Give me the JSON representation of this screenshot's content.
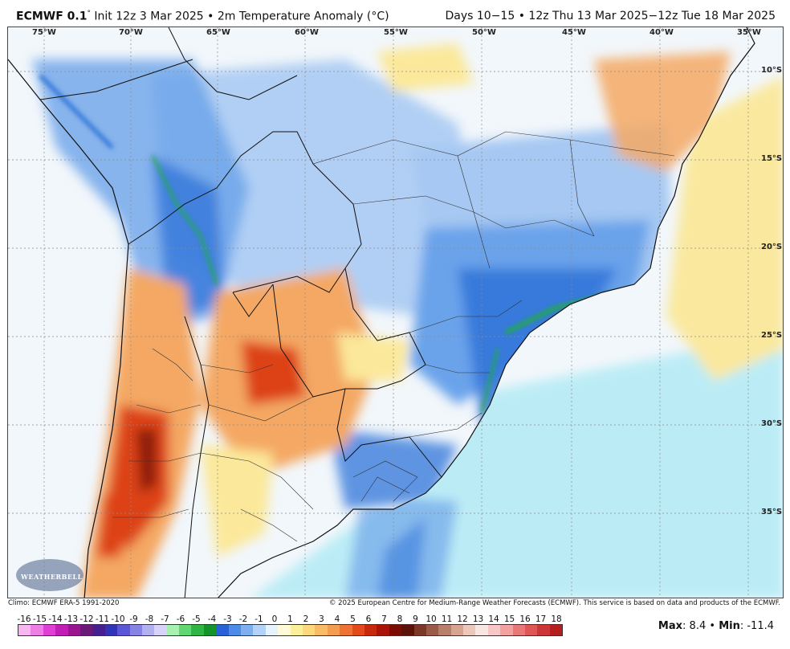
{
  "header": {
    "model": "ECMWF 0.1",
    "degree_mark": "°",
    "init": "Init 12z 3 Mar 2025",
    "sep1": "•",
    "product": "2m Temperature Anomaly (°C)",
    "period": "Days 10−15",
    "sep2": "•",
    "valid": "12z Thu 13 Mar 2025−12z Tue 18 Mar 2025"
  },
  "map": {
    "lon_labels": [
      "75°W",
      "70°W",
      "65°W",
      "60°W",
      "55°W",
      "50°W",
      "45°W",
      "40°W",
      "35°W"
    ],
    "lat_labels": [
      "10°S",
      "15°S",
      "20°S",
      "25°S",
      "30°S",
      "35°S"
    ],
    "colors": {
      "ocean_cool": "#b9ecf6",
      "ocean_neutral": "#f2f7fb",
      "cold_blue": "#2f73d9",
      "cold_mid": "#6aa3ea",
      "cold_light": "#a6c8f2",
      "very_cold_green": "#1fae3a",
      "warm_yellow": "#fbe89a",
      "warm_orange": "#f4a863",
      "hot_red": "#dd4316",
      "very_hot": "#8b1a0a"
    }
  },
  "footer": {
    "climo": "Climo: ECMWF ERA-5 1991-2020",
    "copyright": "© 2025 European Centre for Medium-Range Weather Forecasts (ECMWF). This service is based on data and products of the ECMWF."
  },
  "colorbar": {
    "ticks": [
      "-16",
      "-15",
      "-14",
      "-13",
      "-12",
      "-11",
      "-10",
      "-9",
      "-8",
      "-7",
      "-6",
      "-5",
      "-4",
      "-3",
      "-2",
      "-1",
      "0",
      "1",
      "2",
      "3",
      "4",
      "5",
      "6",
      "7",
      "8",
      "9",
      "10",
      "11",
      "12",
      "13",
      "14",
      "15",
      "16",
      "17",
      "18"
    ],
    "colors": [
      "#f6b6f0",
      "#ee7de6",
      "#df3fd4",
      "#c21db7",
      "#9a1690",
      "#6b1a78",
      "#46208f",
      "#3234b6",
      "#5a56d6",
      "#8782e6",
      "#b3b0f0",
      "#d6d2f8",
      "#a8f0b0",
      "#62d672",
      "#2fb544",
      "#12942a",
      "#2a62d6",
      "#4c8ce6",
      "#7eb0f0",
      "#b2d2f8",
      "#e6f2fc",
      "#fffbd9",
      "#fcef9c",
      "#fbd97c",
      "#f8bd64",
      "#f49c50",
      "#ee7236",
      "#e24a1c",
      "#c8280c",
      "#a81408",
      "#7a0c04",
      "#5c1208",
      "#7a3826",
      "#9a5c48",
      "#b8806a",
      "#d6a490",
      "#ecc8bc",
      "#f8e6e2",
      "#f7c6c6",
      "#f2a0a0",
      "#e87878",
      "#de5656",
      "#cc3636",
      "#b41e1e"
    ],
    "max_label": "Max",
    "max_value": "8.4",
    "min_label": "Min",
    "min_value": "-11.4",
    "sep": "•"
  },
  "logo": {
    "text": "WEATHERBELL"
  }
}
